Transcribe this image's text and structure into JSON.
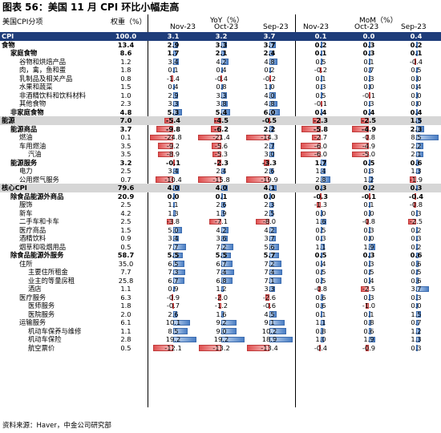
{
  "title": "图表 56：美国 11 月 CPI 环比小幅走高",
  "header": {
    "category_label": "美国CPI分项",
    "weight_label": "权重（%）",
    "yoy_label": "YoY（%）",
    "mom_label": "MoM（%）",
    "months": [
      "Nov-23",
      "Oct-23",
      "Sep-23"
    ]
  },
  "source": "资料来源：Haver，中金公司研究部",
  "colors": {
    "header_fill": "#1f3d7a",
    "section_fill": "#d6d6d6",
    "pos_bar": "#4a7ec4",
    "neg_bar": "#e05050"
  },
  "rows": [
    {
      "label": "CPI",
      "weight": "100.0",
      "yoy": [
        3.1,
        3.2,
        3.7
      ],
      "mom": [
        0.1,
        0.0,
        0.4
      ],
      "indent": 0,
      "style": "cpi"
    },
    {
      "label": "食物",
      "weight": "13.4",
      "yoy": [
        2.9,
        3.3,
        3.7
      ],
      "mom": [
        0.2,
        0.3,
        0.2
      ],
      "indent": 0,
      "style": "bold"
    },
    {
      "label": "家庭食物",
      "weight": "8.6",
      "yoy": [
        1.7,
        2.1,
        2.4
      ],
      "mom": [
        0.1,
        0.3,
        0.1
      ],
      "indent": 1,
      "style": "bold"
    },
    {
      "label": "谷物和烘焙产品",
      "weight": "1.2",
      "yoy": [
        3.4,
        4.2,
        4.8
      ],
      "mom": [
        0.5,
        0.1,
        -0.4
      ],
      "indent": 2,
      "style": ""
    },
    {
      "label": "肉，禽，鱼和蛋",
      "weight": "1.8",
      "yoy": [
        0.1,
        0.4,
        0.2
      ],
      "mom": [
        -0.2,
        0.7,
        0.5
      ],
      "indent": 2,
      "style": ""
    },
    {
      "label": "乳制品及相关产品",
      "weight": "0.8",
      "yoy": [
        -1.4,
        -0.4,
        -0.2
      ],
      "mom": [
        0.1,
        0.3,
        0.0
      ],
      "indent": 2,
      "style": ""
    },
    {
      "label": "水果和蔬菜",
      "weight": "1.5",
      "yoy": [
        0.4,
        0.8,
        1.0
      ],
      "mom": [
        0.3,
        0.0,
        0.4
      ],
      "indent": 2,
      "style": ""
    },
    {
      "label": "非酒精饮料和饮料材料",
      "weight": "1.0",
      "yoy": [
        2.9,
        3.3,
        4.0
      ],
      "mom": [
        0.5,
        -0.1,
        0.0
      ],
      "indent": 2,
      "style": ""
    },
    {
      "label": "其他食物",
      "weight": "2.3",
      "yoy": [
        3.3,
        3.8,
        4.8
      ],
      "mom": [
        -0.1,
        0.3,
        0.0
      ],
      "indent": 2,
      "style": ""
    },
    {
      "label": "非家庭食物",
      "weight": "4.8",
      "yoy": [
        5.3,
        5.4,
        6.0
      ],
      "mom": [
        0.4,
        0.4,
        0.4
      ],
      "indent": 1,
      "style": "bold"
    },
    {
      "label": "能源",
      "weight": "7.0",
      "yoy": [
        -5.4,
        -4.5,
        -0.5
      ],
      "mom": [
        -2.3,
        -2.5,
        1.5
      ],
      "indent": 0,
      "style": "gray"
    },
    {
      "label": "能源商品",
      "weight": "3.7",
      "yoy": [
        -9.8,
        -6.2,
        2.2
      ],
      "mom": [
        -5.8,
        -4.9,
        2.3
      ],
      "indent": 1,
      "style": "bold"
    },
    {
      "label": "燃油",
      "weight": "0.1",
      "yoy": [
        -24.8,
        -21.4,
        -14.3
      ],
      "mom": [
        -2.7,
        -0.8,
        8.5
      ],
      "indent": 2,
      "style": ""
    },
    {
      "label": "车用燃油",
      "weight": "3.5",
      "yoy": [
        -9.2,
        -5.6,
        2.7
      ],
      "mom": [
        -6.0,
        -4.9,
        2.2
      ],
      "indent": 2,
      "style": ""
    },
    {
      "label": "汽油",
      "weight": "3.5",
      "yoy": [
        -8.9,
        -5.3,
        3.0
      ],
      "mom": [
        -6.0,
        -5.0,
        2.1
      ],
      "indent": 3,
      "style": ""
    },
    {
      "label": "能源服务",
      "weight": "3.2",
      "yoy": [
        -0.1,
        -2.3,
        -3.3
      ],
      "mom": [
        1.7,
        0.5,
        0.6
      ],
      "indent": 1,
      "style": "bold"
    },
    {
      "label": "电力",
      "weight": "2.5",
      "yoy": [
        3.4,
        2.4,
        2.6
      ],
      "mom": [
        1.4,
        0.3,
        1.3
      ],
      "indent": 2,
      "style": ""
    },
    {
      "label": "公用燃气服务",
      "weight": "0.7",
      "yoy": [
        -10.4,
        -15.8,
        -19.9
      ],
      "mom": [
        2.8,
        1.2,
        -1.9
      ],
      "indent": 2,
      "style": ""
    },
    {
      "label": "核心CPI",
      "weight": "79.6",
      "yoy": [
        4.0,
        4.0,
        4.1
      ],
      "mom": [
        0.3,
        0.2,
        0.3
      ],
      "indent": 0,
      "style": "gray"
    },
    {
      "label": "除食品能源外商品",
      "weight": "20.9",
      "yoy": [
        0.0,
        0.1,
        0.0
      ],
      "mom": [
        -0.3,
        -0.1,
        -0.4
      ],
      "indent": 1,
      "style": "bold"
    },
    {
      "label": "服饰",
      "weight": "2.5",
      "yoy": [
        1.1,
        2.6,
        2.3
      ],
      "mom": [
        -1.3,
        0.1,
        -0.8
      ],
      "indent": 2,
      "style": ""
    },
    {
      "label": "新车",
      "weight": "4.2",
      "yoy": [
        1.3,
        1.9,
        2.5
      ],
      "mom": [
        0.0,
        0.0,
        0.3
      ],
      "indent": 2,
      "style": ""
    },
    {
      "label": "二手车和卡车",
      "weight": "2.5",
      "yoy": [
        -3.8,
        -7.1,
        -8.0
      ],
      "mom": [
        1.6,
        -0.8,
        -2.5
      ],
      "indent": 2,
      "style": ""
    },
    {
      "label": "医疗商品",
      "weight": "1.5",
      "yoy": [
        5.0,
        4.2,
        4.2
      ],
      "mom": [
        0.5,
        0.3,
        0.2
      ],
      "indent": 2,
      "style": ""
    },
    {
      "label": "酒精饮料",
      "weight": "0.9",
      "yoy": [
        3.4,
        3.6,
        3.7
      ],
      "mom": [
        0.3,
        0.0,
        0.3
      ],
      "indent": 2,
      "style": ""
    },
    {
      "label": "烟草和吸烟用品",
      "weight": "0.5",
      "yoy": [
        7.7,
        7.2,
        5.6
      ],
      "mom": [
        1.1,
        1.9,
        0.2
      ],
      "indent": 2,
      "style": ""
    },
    {
      "label": "除食品能源外服务",
      "weight": "58.7",
      "yoy": [
        5.5,
        5.5,
        5.7
      ],
      "mom": [
        0.5,
        0.3,
        0.6
      ],
      "indent": 1,
      "style": "bold"
    },
    {
      "label": "住所",
      "weight": "35.0",
      "yoy": [
        6.5,
        6.7,
        7.2
      ],
      "mom": [
        0.4,
        0.3,
        0.6
      ],
      "indent": 2,
      "style": ""
    },
    {
      "label": "主要住所租金",
      "weight": "7.7",
      "yoy": [
        7.3,
        7.4,
        7.4
      ],
      "mom": [
        0.5,
        0.5,
        0.5
      ],
      "indent": 3,
      "style": ""
    },
    {
      "label": "业主的等量房租",
      "weight": "25.8",
      "yoy": [
        6.7,
        6.8,
        7.1
      ],
      "mom": [
        0.5,
        0.4,
        0.6
      ],
      "indent": 3,
      "style": ""
    },
    {
      "label": "酒店",
      "weight": "1.1",
      "yoy": [
        0.9,
        1.2,
        3.3
      ],
      "mom": [
        -0.8,
        -2.5,
        3.7
      ],
      "indent": 3,
      "style": ""
    },
    {
      "label": "医疗服务",
      "weight": "6.3",
      "yoy": [
        -0.9,
        -2.0,
        -2.6
      ],
      "mom": [
        0.6,
        0.3,
        0.3
      ],
      "indent": 2,
      "style": ""
    },
    {
      "label": "医师服务",
      "weight": "1.8",
      "yoy": [
        -0.7,
        -1.2,
        -0.6
      ],
      "mom": [
        0.6,
        -1.0,
        0.0
      ],
      "indent": 3,
      "style": ""
    },
    {
      "label": "医院服务",
      "weight": "2.0",
      "yoy": [
        2.6,
        1.6,
        4.5
      ],
      "mom": [
        0.1,
        0.1,
        1.5
      ],
      "indent": 3,
      "style": ""
    },
    {
      "label": "运输服务",
      "weight": "6.1",
      "yoy": [
        10.1,
        9.2,
        9.1
      ],
      "mom": [
        1.1,
        0.8,
        0.7
      ],
      "indent": 2,
      "style": ""
    },
    {
      "label": "机动车保养与维修",
      "weight": "1.1",
      "yoy": [
        8.5,
        9.0,
        10.2
      ],
      "mom": [
        0.8,
        0.6,
        1.2
      ],
      "indent": 3,
      "style": ""
    },
    {
      "label": "机动车保险",
      "weight": "2.8",
      "yoy": [
        19.2,
        19.2,
        18.9
      ],
      "mom": [
        1.0,
        1.9,
        1.3
      ],
      "indent": 3,
      "style": ""
    },
    {
      "label": "航空票价",
      "weight": "0.5",
      "yoy": [
        -12.1,
        -13.2,
        -13.4
      ],
      "mom": [
        -0.4,
        -0.9,
        0.3
      ],
      "indent": 3,
      "style": ""
    }
  ]
}
